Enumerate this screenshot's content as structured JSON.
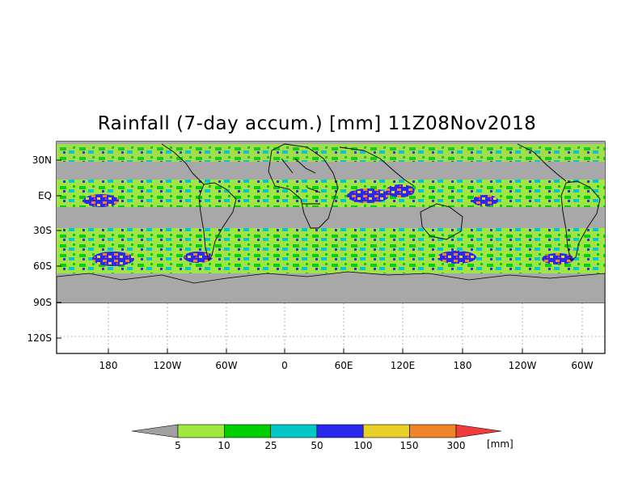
{
  "title": "Rainfall (7-day accum.) [mm] 11Z08Nov2018",
  "y_tick_labels": [
    "30N",
    "EQ",
    "30S",
    "60S",
    "90S",
    "120S"
  ],
  "x_tick_labels": [
    "180",
    "120W",
    "60W",
    "0",
    "60E",
    "120E",
    "180",
    "120W",
    "60W"
  ],
  "colorbar": {
    "unit_label": "[mm]",
    "tick_labels": [
      "5",
      "10",
      "25",
      "50",
      "100",
      "150",
      "300"
    ],
    "colors": [
      "#a0a0a0",
      "#9ee840",
      "#00d000",
      "#00c8c8",
      "#2828f0",
      "#e8d028",
      "#f08428",
      "#f03c3c"
    ]
  },
  "colors": {
    "land_no_rain": "#a8a8a8",
    "coastline": "#000000",
    "grid": "#888888"
  }
}
